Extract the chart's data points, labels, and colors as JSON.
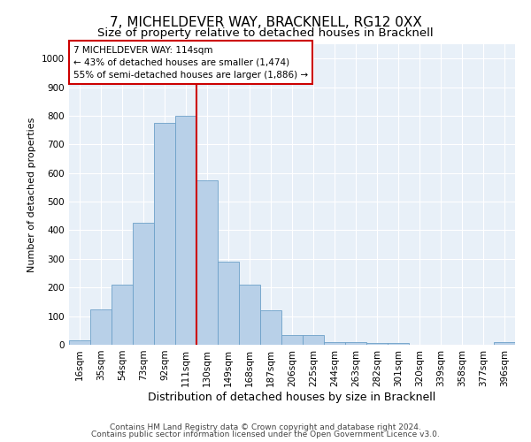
{
  "title": "7, MICHELDEVER WAY, BRACKNELL, RG12 0XX",
  "subtitle": "Size of property relative to detached houses in Bracknell",
  "xlabel": "Distribution of detached houses by size in Bracknell",
  "ylabel": "Number of detached properties",
  "categories": [
    "16sqm",
    "35sqm",
    "54sqm",
    "73sqm",
    "92sqm",
    "111sqm",
    "130sqm",
    "149sqm",
    "168sqm",
    "187sqm",
    "206sqm",
    "225sqm",
    "244sqm",
    "263sqm",
    "282sqm",
    "301sqm",
    "320sqm",
    "339sqm",
    "358sqm",
    "377sqm",
    "396sqm"
  ],
  "values": [
    15,
    125,
    210,
    425,
    775,
    800,
    575,
    290,
    210,
    120,
    35,
    35,
    10,
    8,
    5,
    5,
    0,
    0,
    0,
    0,
    8
  ],
  "bar_color": "#b8d0e8",
  "bar_edge_color": "#6ca0c8",
  "vline_x": 5.5,
  "vline_color": "#cc0000",
  "annotation_text": "7 MICHELDEVER WAY: 114sqm\n← 43% of detached houses are smaller (1,474)\n55% of semi-detached houses are larger (1,886) →",
  "annotation_box_color": "#ffffff",
  "annotation_box_edge_color": "#cc0000",
  "footnote1": "Contains HM Land Registry data © Crown copyright and database right 2024.",
  "footnote2": "Contains public sector information licensed under the Open Government Licence v3.0.",
  "ylim": [
    0,
    1050
  ],
  "yticks": [
    0,
    100,
    200,
    300,
    400,
    500,
    600,
    700,
    800,
    900,
    1000
  ],
  "background_color": "#e8f0f8",
  "grid_color": "#ffffff",
  "title_fontsize": 11,
  "subtitle_fontsize": 9.5,
  "xlabel_fontsize": 9,
  "ylabel_fontsize": 8,
  "tick_fontsize": 7.5,
  "annotation_fontsize": 7.5,
  "footnote_fontsize": 6.5
}
